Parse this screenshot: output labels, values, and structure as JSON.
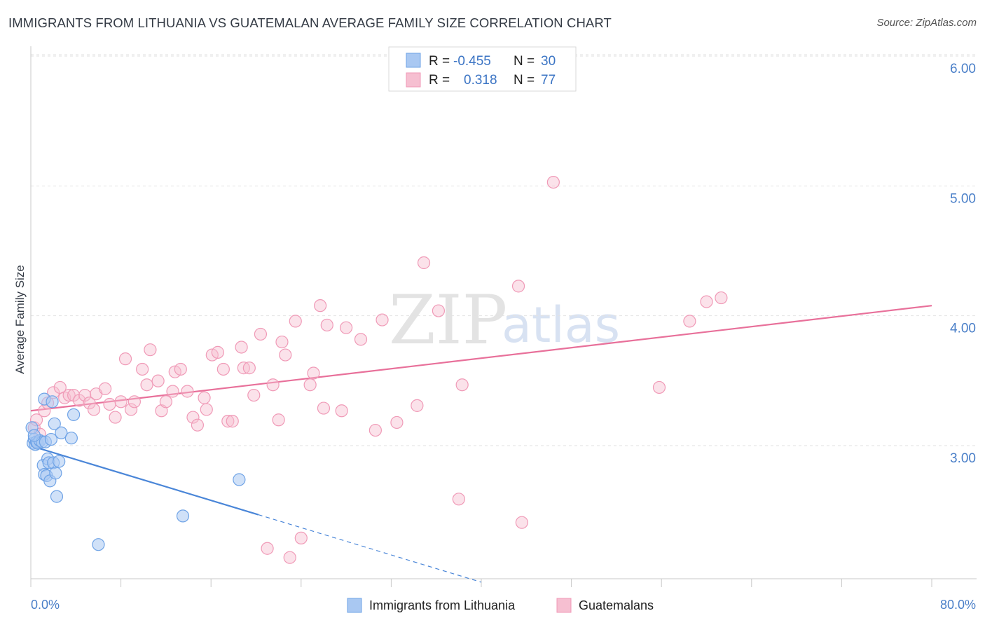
{
  "title": "IMMIGRANTS FROM LITHUANIA VS GUATEMALAN AVERAGE FAMILY SIZE CORRELATION CHART",
  "source": "Source: ZipAtlas.com",
  "watermark": {
    "zip": "ZIP",
    "atlas": "atlas"
  },
  "legend": {
    "rows": [
      {
        "r_label": "R =",
        "r_value": "-0.455",
        "n_label": "N =",
        "n_value": "30",
        "color": "#6fa3e6"
      },
      {
        "r_label": "R =",
        "r_value": "0.318",
        "n_label": "N =",
        "n_value": "77",
        "color": "#f09ab7"
      }
    ]
  },
  "colors": {
    "blue": "#4a86d8",
    "blue_fill": "#a9c8f2",
    "pink": "#e8709a",
    "pink_fill": "#f6bfd1",
    "axis_text": "#4a7fc8"
  },
  "chart_data": {
    "type": "scatter",
    "title": "IMMIGRANTS FROM LITHUANIA VS GUATEMALAN AVERAGE FAMILY SIZE CORRELATION CHART",
    "xlabel": "",
    "ylabel": "Average Family Size",
    "xlim": [
      0,
      80
    ],
    "ylim": [
      2.0,
      6.1
    ],
    "x_tick_labels": [
      "0.0%",
      "80.0%"
    ],
    "y_ticks": [
      3.0,
      4.0,
      5.0,
      6.0
    ],
    "y_tick_labels": [
      "3.00",
      "4.00",
      "5.00",
      "6.00"
    ],
    "grid": true,
    "legend_position": "top-center",
    "series": [
      {
        "name": "Immigrants from Lithuania",
        "color": "#4a86d8",
        "points": [
          [
            0.1,
            3.23
          ],
          [
            0.2,
            3.11
          ],
          [
            0.3,
            3.14
          ],
          [
            0.4,
            3.1
          ],
          [
            0.5,
            3.12
          ],
          [
            0.6,
            3.11
          ],
          [
            0.8,
            3.13
          ],
          [
            1.0,
            3.12
          ],
          [
            1.1,
            2.94
          ],
          [
            1.2,
            2.87
          ],
          [
            1.2,
            3.45
          ],
          [
            1.3,
            3.12
          ],
          [
            1.4,
            2.86
          ],
          [
            1.5,
            2.99
          ],
          [
            1.6,
            2.96
          ],
          [
            1.7,
            2.82
          ],
          [
            1.8,
            3.14
          ],
          [
            1.9,
            3.43
          ],
          [
            2.0,
            2.96
          ],
          [
            2.1,
            3.26
          ],
          [
            2.2,
            2.88
          ],
          [
            2.3,
            2.7
          ],
          [
            2.5,
            2.97
          ],
          [
            2.7,
            3.19
          ],
          [
            3.6,
            3.15
          ],
          [
            3.8,
            3.33
          ],
          [
            6.0,
            2.33
          ],
          [
            13.5,
            2.55
          ],
          [
            18.5,
            2.83
          ],
          [
            0.3,
            3.17
          ]
        ],
        "trendline": {
          "x0": 0,
          "y0": 3.09,
          "x1": 20.2,
          "y1": 2.56,
          "dash_to_x": 40,
          "dash_to_y": 2.04
        }
      },
      {
        "name": "Guatemalans",
        "color": "#e8709a",
        "points": [
          [
            0.3,
            3.23
          ],
          [
            0.5,
            3.29
          ],
          [
            0.8,
            3.18
          ],
          [
            1.2,
            3.36
          ],
          [
            1.5,
            3.42
          ],
          [
            2.0,
            3.5
          ],
          [
            2.6,
            3.54
          ],
          [
            3.0,
            3.46
          ],
          [
            3.4,
            3.48
          ],
          [
            3.8,
            3.48
          ],
          [
            4.3,
            3.44
          ],
          [
            4.8,
            3.48
          ],
          [
            5.2,
            3.42
          ],
          [
            5.6,
            3.37
          ],
          [
            5.8,
            3.49
          ],
          [
            6.6,
            3.53
          ],
          [
            7.0,
            3.41
          ],
          [
            7.5,
            3.31
          ],
          [
            8.0,
            3.43
          ],
          [
            8.4,
            3.76
          ],
          [
            8.9,
            3.37
          ],
          [
            9.2,
            3.43
          ],
          [
            9.9,
            3.68
          ],
          [
            10.3,
            3.56
          ],
          [
            10.6,
            3.83
          ],
          [
            11.3,
            3.59
          ],
          [
            11.6,
            3.36
          ],
          [
            12.0,
            3.43
          ],
          [
            12.6,
            3.51
          ],
          [
            12.8,
            3.66
          ],
          [
            13.3,
            3.68
          ],
          [
            13.9,
            3.51
          ],
          [
            14.4,
            3.31
          ],
          [
            14.8,
            3.25
          ],
          [
            15.4,
            3.46
          ],
          [
            15.6,
            3.37
          ],
          [
            16.1,
            3.79
          ],
          [
            16.6,
            3.81
          ],
          [
            17.1,
            3.68
          ],
          [
            17.5,
            3.28
          ],
          [
            17.9,
            3.28
          ],
          [
            18.7,
            3.85
          ],
          [
            18.9,
            3.69
          ],
          [
            19.4,
            3.69
          ],
          [
            19.8,
            3.48
          ],
          [
            20.4,
            3.95
          ],
          [
            21.5,
            3.56
          ],
          [
            22.0,
            3.29
          ],
          [
            22.3,
            3.89
          ],
          [
            22.6,
            3.79
          ],
          [
            23.5,
            4.05
          ],
          [
            24.8,
            3.56
          ],
          [
            25.1,
            3.65
          ],
          [
            25.7,
            4.17
          ],
          [
            26.0,
            3.38
          ],
          [
            26.3,
            4.02
          ],
          [
            27.6,
            3.36
          ],
          [
            28.0,
            4.0
          ],
          [
            29.3,
            3.91
          ],
          [
            30.6,
            3.21
          ],
          [
            31.2,
            4.06
          ],
          [
            32.5,
            3.27
          ],
          [
            34.3,
            3.4
          ],
          [
            34.9,
            4.5
          ],
          [
            36.2,
            4.13
          ],
          [
            38.0,
            2.68
          ],
          [
            38.3,
            3.56
          ],
          [
            43.3,
            4.32
          ],
          [
            43.6,
            2.5
          ],
          [
            46.4,
            5.12
          ],
          [
            55.8,
            3.54
          ],
          [
            58.5,
            4.05
          ],
          [
            60.0,
            4.2
          ],
          [
            61.3,
            4.23
          ],
          [
            21.0,
            2.3
          ],
          [
            23.0,
            2.23
          ],
          [
            24.0,
            2.38
          ]
        ],
        "trendline": {
          "x0": 0,
          "y0": 3.36,
          "x1": 80,
          "y1": 4.17
        }
      }
    ]
  },
  "bottom_legend": [
    {
      "label": "Immigrants from Lithuania",
      "color": "#a9c8f2"
    },
    {
      "label": "Guatemalans",
      "color": "#f6bfd1"
    }
  ]
}
